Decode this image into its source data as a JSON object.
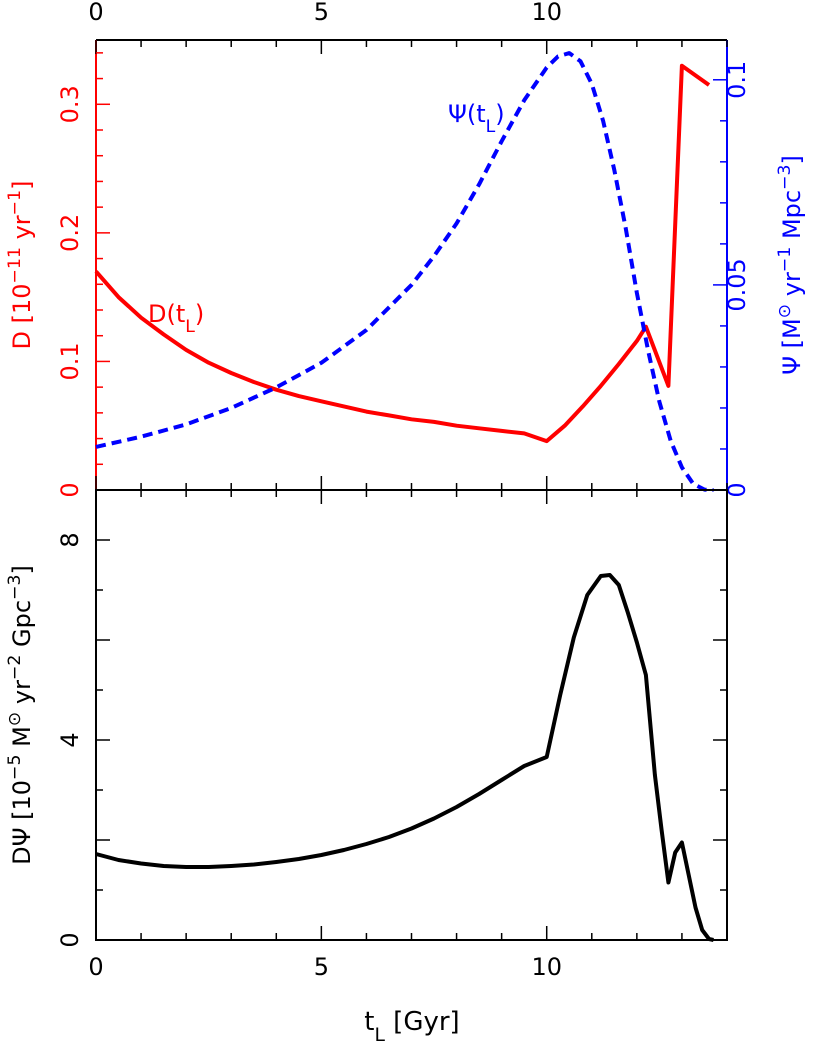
{
  "chart_data": [
    {
      "type": "line",
      "panel": "top",
      "x_ticks": [
        "0",
        "5",
        "10"
      ],
      "top_x_ticks": [
        "0",
        "5",
        "10"
      ],
      "xlim": [
        0,
        14
      ],
      "left_axis": {
        "label_parts": [
          "D [10",
          "−11",
          " yr",
          "−1",
          "]"
        ],
        "ylim": [
          0,
          0.35
        ],
        "ticks": [
          0,
          0.1,
          0.2,
          0.3
        ],
        "tick_labels": [
          "0",
          "0.1",
          "0.2",
          "0.3"
        ],
        "color": "#ff0000"
      },
      "right_axis": {
        "label_parts": [
          "Ψ [M",
          "⊙",
          " yr",
          "−1",
          " Mpc",
          "−3",
          "]"
        ],
        "ylim": [
          0,
          0.1097
        ],
        "ticks": [
          0,
          0.05,
          0.1
        ],
        "tick_labels": [
          "0",
          "0.05",
          "0.1"
        ],
        "color": "#0000ff"
      },
      "series": [
        {
          "name": "D(tL)",
          "label_parts": [
            "D(t",
            "L",
            ")"
          ],
          "axis": "left",
          "color": "#ff0000",
          "style": "solid",
          "x": [
            0,
            0.5,
            1,
            1.5,
            2,
            2.5,
            3,
            3.5,
            4,
            4.5,
            5,
            5.5,
            6,
            6.5,
            7,
            7.5,
            8,
            8.5,
            9,
            9.5,
            10,
            10.4,
            10.8,
            11.2,
            11.6,
            12,
            12.2,
            12.7,
            13,
            13.6
          ],
          "y": [
            0.17,
            0.15,
            0.134,
            0.121,
            0.109,
            0.099,
            0.091,
            0.084,
            0.078,
            0.073,
            0.069,
            0.065,
            0.061,
            0.058,
            0.055,
            0.053,
            0.05,
            0.048,
            0.046,
            0.044,
            0.038,
            0.05,
            0.065,
            0.081,
            0.098,
            0.116,
            0.127,
            0.081,
            0.33,
            0.315
          ]
        },
        {
          "name": "Ψ(tL)",
          "label_parts": [
            "Ψ(t",
            "L",
            ")"
          ],
          "axis": "right",
          "color": "#0000ff",
          "style": "dashed",
          "x": [
            0,
            1,
            2,
            3,
            4,
            5,
            6,
            7,
            7.5,
            8,
            8.5,
            9,
            9.5,
            10,
            10.25,
            10.5,
            10.75,
            11,
            11.25,
            11.5,
            11.75,
            12,
            12.25,
            12.5,
            12.75,
            13,
            13.25,
            13.5,
            13.7
          ],
          "y": [
            0.0105,
            0.013,
            0.016,
            0.02,
            0.025,
            0.031,
            0.039,
            0.05,
            0.057,
            0.065,
            0.0745,
            0.085,
            0.095,
            0.103,
            0.1057,
            0.1065,
            0.1045,
            0.099,
            0.09,
            0.078,
            0.064,
            0.048,
            0.034,
            0.0215,
            0.012,
            0.0055,
            0.0015,
            0.0001,
            0
          ]
        }
      ]
    },
    {
      "type": "line",
      "panel": "bottom",
      "xlabel_parts": [
        "t",
        "L",
        " [Gyr]"
      ],
      "x_ticks": [
        "0",
        "5",
        "10"
      ],
      "xlim": [
        0,
        14
      ],
      "ylabel_parts": [
        "DΨ [10",
        "−5",
        " M",
        "⊙",
        " yr",
        "−2",
        " Gpc",
        "−3",
        "]"
      ],
      "ylim": [
        0,
        9
      ],
      "y_ticks": [
        0,
        4,
        8
      ],
      "y_tick_labels": [
        "0",
        "4",
        "8"
      ],
      "series": [
        {
          "color": "#000000",
          "style": "solid",
          "x": [
            0,
            0.5,
            1,
            1.5,
            2,
            2.5,
            3,
            3.5,
            4,
            4.5,
            5,
            5.5,
            6,
            6.5,
            7,
            7.5,
            8,
            8.5,
            9,
            9.5,
            10,
            10.3,
            10.6,
            10.9,
            11.2,
            11.4,
            11.6,
            11.8,
            12,
            12.2,
            12.4,
            12.55,
            12.7,
            12.85,
            13,
            13.15,
            13.3,
            13.45,
            13.6,
            13.7
          ],
          "y": [
            1.72,
            1.6,
            1.53,
            1.48,
            1.46,
            1.46,
            1.48,
            1.51,
            1.56,
            1.62,
            1.7,
            1.8,
            1.92,
            2.06,
            2.23,
            2.43,
            2.66,
            2.92,
            3.2,
            3.48,
            3.66,
            4.9,
            6.05,
            6.9,
            7.28,
            7.3,
            7.1,
            6.55,
            5.95,
            5.3,
            3.3,
            2.2,
            1.15,
            1.75,
            1.95,
            1.3,
            0.65,
            0.2,
            0.02,
            0
          ]
        }
      ]
    }
  ]
}
